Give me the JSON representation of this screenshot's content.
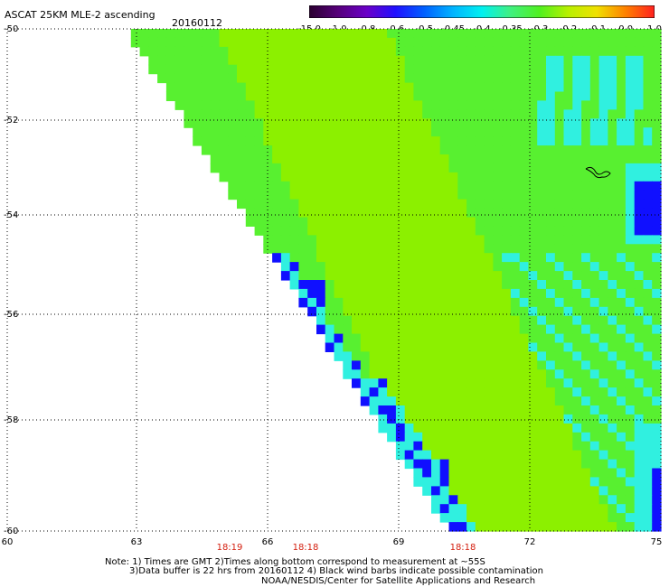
{
  "header": {
    "title": "ASCAT 25KM MLE-2 ascending",
    "date": "20160112"
  },
  "colorbar": {
    "labels": [
      "-15.0",
      "-1.0",
      "-0.8",
      "-0.6",
      "-0.5",
      "-0.45",
      "-0.4",
      "-0.35",
      "-0.3",
      "-0.2",
      "-0.1",
      "0.0",
      "1.0"
    ],
    "colors": [
      "#2b0030",
      "#56007a",
      "#6a00c8",
      "#2010ff",
      "#0060ff",
      "#00b4ff",
      "#00f0f0",
      "#40f080",
      "#50f020",
      "#b8f000",
      "#f0e000",
      "#ff8000",
      "#ff2020"
    ]
  },
  "map": {
    "lat_labels": [
      "-50",
      "-52",
      "-54",
      "-56",
      "-58",
      "-60"
    ],
    "lon_labels": [
      "60",
      "63",
      "66",
      "69",
      "72",
      "75"
    ],
    "time_labels": [
      "18:19",
      "18:18",
      "18:18"
    ],
    "colors": {
      "green": "#58f030",
      "yellowgreen": "#8cf000",
      "cyan": "#30f0e0",
      "blue": "#1010ff",
      "deepblue": "#5000d0",
      "time_label": "#d42010"
    }
  },
  "notes": {
    "line1": "Note: 1) Times are GMT 2)Times along bottom correspond to measurement at ~55S",
    "line2": "3)Data buffer is 22 hrs from 20160112 4) Black wind barbs indicate possible contamination",
    "line3": "NOAA/NESDIS/Center for Satellite Applications and Research"
  }
}
